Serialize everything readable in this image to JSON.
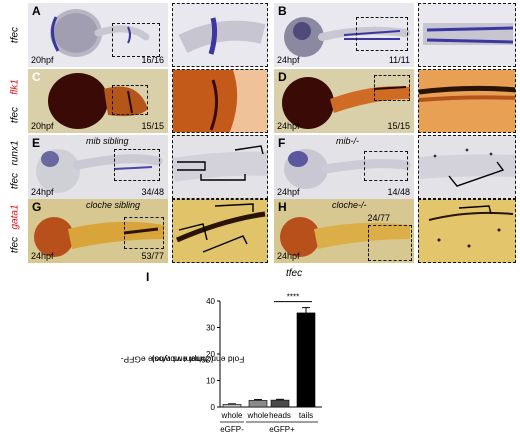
{
  "panels": {
    "A": {
      "letter": "A",
      "stage": "20hpf",
      "count": "16/16"
    },
    "B": {
      "letter": "B",
      "stage": "24hpf",
      "count": "11/11"
    },
    "C": {
      "letter": "C",
      "stage": "20hpf",
      "count": "15/15"
    },
    "D": {
      "letter": "D",
      "stage": "24hpf",
      "count": "15/15"
    },
    "E": {
      "letter": "E",
      "stage": "24hpf",
      "count": "34/48",
      "condition": "mib sibling"
    },
    "F": {
      "letter": "F",
      "stage": "24hpf",
      "count": "14/48",
      "condition": "mib-/-"
    },
    "G": {
      "letter": "G",
      "stage": "24hpf",
      "count": "53/77",
      "condition": "cloche sibling"
    },
    "H": {
      "letter": "H",
      "stage": "24hpf",
      "count": "24/77",
      "condition": "cloche-/-"
    }
  },
  "row_labels": {
    "row1": [
      "tfec"
    ],
    "row2": [
      "tfec",
      "flk1"
    ],
    "row3": [
      "tfec",
      "runx1"
    ],
    "row4": [
      "tfec",
      "gata1"
    ]
  },
  "colors": {
    "blue_stain": "#4b46a8",
    "orange_stain": "#c8651a",
    "red_label": "#d8141b",
    "bar_gray": "#bdbdbd",
    "bar_dark": "#4a4a4a",
    "bar_black": "#000000"
  },
  "chart_data": {
    "type": "bar",
    "panel_letter": "I",
    "title": "tfec",
    "ylabel_line1": "Fold enrichment vs whole eGFP-",
    "ylabel_line2": "(26hpf embryos)",
    "ylim": [
      0,
      40
    ],
    "yticks": [
      "0",
      "10",
      "20",
      "30",
      "40"
    ],
    "categories": [
      "whole",
      "whole",
      "heads",
      "tails"
    ],
    "values": [
      1.0,
      2.5,
      2.6,
      35.5
    ],
    "errors": [
      0.2,
      0.3,
      0.3,
      2.0
    ],
    "groups": [
      {
        "label": "eGFP-",
        "span": [
          0,
          0
        ]
      },
      {
        "label": "eGFP+",
        "span": [
          1,
          3
        ]
      }
    ],
    "significance": {
      "label": "****",
      "between": [
        2,
        3
      ]
    },
    "grid": false
  }
}
